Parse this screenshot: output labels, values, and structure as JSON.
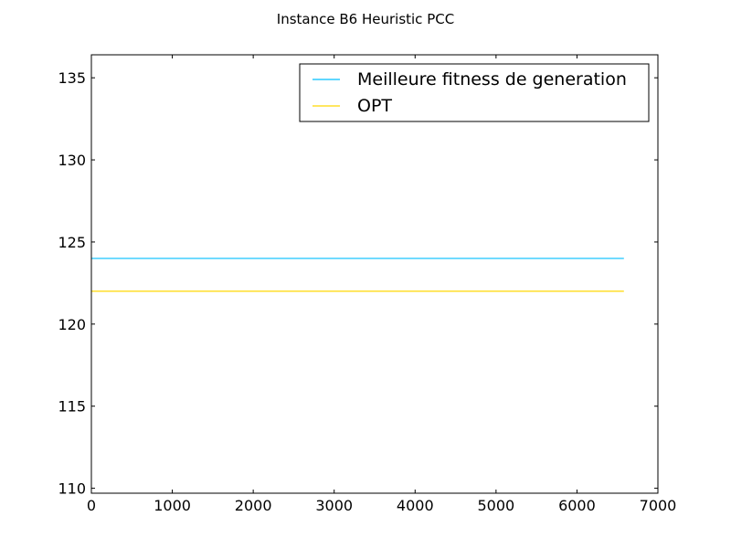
{
  "chart_data": {
    "type": "line",
    "title": "Instance B6 Heuristic PCC",
    "xlabel": "",
    "ylabel": "",
    "xlim": [
      0,
      7000
    ],
    "ylim": [
      109.7,
      136.4
    ],
    "xticks": [
      0,
      1000,
      2000,
      3000,
      4000,
      5000,
      6000,
      7000
    ],
    "yticks": [
      110,
      115,
      120,
      125,
      130,
      135
    ],
    "grid": false,
    "legend_position": "top-right",
    "series": [
      {
        "name": "Meilleure fitness de generation",
        "color": "#00bfff",
        "x": [
          0,
          6580
        ],
        "y": [
          124,
          124
        ]
      },
      {
        "name": "OPT",
        "color": "#ffd700",
        "x": [
          0,
          6580
        ],
        "y": [
          122,
          122
        ]
      }
    ]
  }
}
